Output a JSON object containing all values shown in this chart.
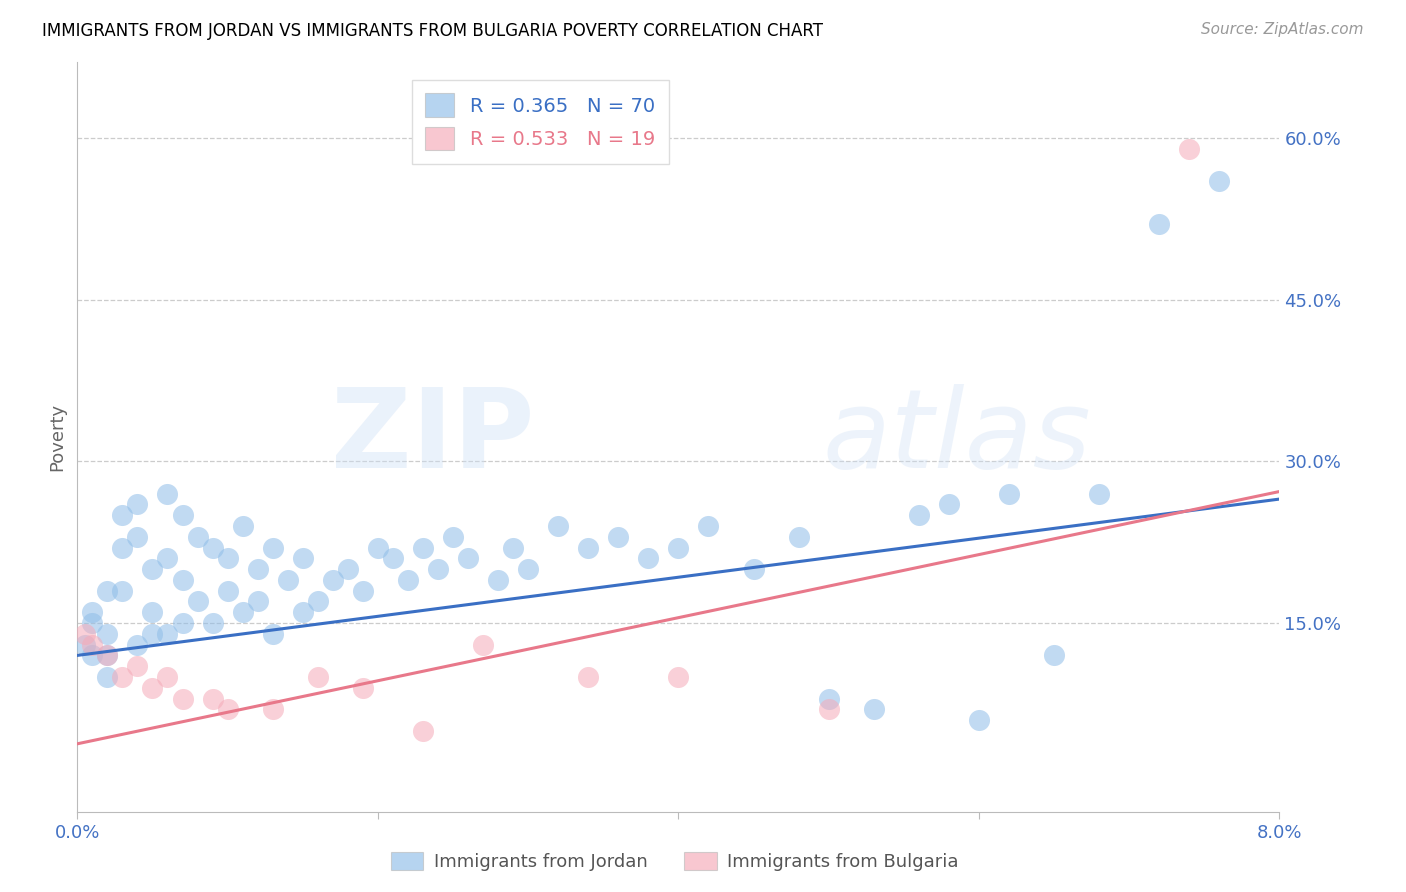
{
  "title": "IMMIGRANTS FROM JORDAN VS IMMIGRANTS FROM BULGARIA POVERTY CORRELATION CHART",
  "source": "Source: ZipAtlas.com",
  "ylabel": "Poverty",
  "xlim": [
    0.0,
    0.08
  ],
  "ylim": [
    -0.025,
    0.67
  ],
  "xtick_positions": [
    0.0,
    0.02,
    0.04,
    0.06,
    0.08
  ],
  "xtick_labels": [
    "0.0%",
    "",
    "",
    "",
    "8.0%"
  ],
  "ytick_values": [
    0.15,
    0.3,
    0.45,
    0.6
  ],
  "ytick_labels": [
    "15.0%",
    "30.0%",
    "45.0%",
    "60.0%"
  ],
  "jordan_color": "#8fbde8",
  "bulgaria_color": "#f5aab8",
  "jordan_line_color": "#3a6fc4",
  "bulgaria_line_color": "#e8788a",
  "jordan_R": 0.365,
  "jordan_N": 70,
  "bulgaria_R": 0.533,
  "bulgaria_N": 19,
  "watermark": "ZIPatlas",
  "legend_label_jordan": "Immigrants from Jordan",
  "legend_label_bulgaria": "Immigrants from Bulgaria",
  "jordan_x": [
    0.0005,
    0.001,
    0.001,
    0.001,
    0.002,
    0.002,
    0.002,
    0.002,
    0.003,
    0.003,
    0.003,
    0.004,
    0.004,
    0.004,
    0.005,
    0.005,
    0.005,
    0.006,
    0.006,
    0.006,
    0.007,
    0.007,
    0.007,
    0.008,
    0.008,
    0.009,
    0.009,
    0.01,
    0.01,
    0.011,
    0.011,
    0.012,
    0.012,
    0.013,
    0.013,
    0.014,
    0.015,
    0.015,
    0.016,
    0.017,
    0.018,
    0.019,
    0.02,
    0.021,
    0.022,
    0.023,
    0.024,
    0.025,
    0.026,
    0.028,
    0.029,
    0.03,
    0.032,
    0.034,
    0.036,
    0.038,
    0.04,
    0.042,
    0.045,
    0.048,
    0.05,
    0.053,
    0.056,
    0.058,
    0.06,
    0.062,
    0.065,
    0.068,
    0.072,
    0.076
  ],
  "jordan_y": [
    0.13,
    0.16,
    0.15,
    0.12,
    0.14,
    0.18,
    0.12,
    0.1,
    0.22,
    0.25,
    0.18,
    0.26,
    0.23,
    0.13,
    0.14,
    0.2,
    0.16,
    0.27,
    0.21,
    0.14,
    0.25,
    0.19,
    0.15,
    0.23,
    0.17,
    0.22,
    0.15,
    0.21,
    0.18,
    0.24,
    0.16,
    0.2,
    0.17,
    0.22,
    0.14,
    0.19,
    0.16,
    0.21,
    0.17,
    0.19,
    0.2,
    0.18,
    0.22,
    0.21,
    0.19,
    0.22,
    0.2,
    0.23,
    0.21,
    0.19,
    0.22,
    0.2,
    0.24,
    0.22,
    0.23,
    0.21,
    0.22,
    0.24,
    0.2,
    0.23,
    0.08,
    0.07,
    0.25,
    0.26,
    0.06,
    0.27,
    0.12,
    0.27,
    0.52,
    0.56
  ],
  "bulgaria_x": [
    0.0005,
    0.001,
    0.002,
    0.003,
    0.004,
    0.005,
    0.006,
    0.007,
    0.009,
    0.01,
    0.013,
    0.016,
    0.019,
    0.023,
    0.027,
    0.034,
    0.04,
    0.05,
    0.074
  ],
  "bulgaria_y": [
    0.14,
    0.13,
    0.12,
    0.1,
    0.11,
    0.09,
    0.1,
    0.08,
    0.08,
    0.07,
    0.07,
    0.1,
    0.09,
    0.05,
    0.13,
    0.1,
    0.1,
    0.07,
    0.59
  ],
  "jordan_line_x0": 0.0,
  "jordan_line_y0": 0.12,
  "jordan_line_x1": 0.08,
  "jordan_line_y1": 0.265,
  "bulgaria_line_x0": 0.0,
  "bulgaria_line_y0": 0.038,
  "bulgaria_line_x1": 0.08,
  "bulgaria_line_y1": 0.272
}
